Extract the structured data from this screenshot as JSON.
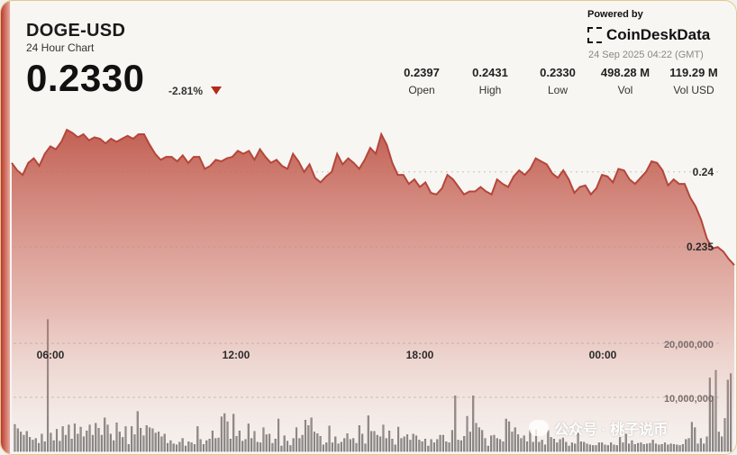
{
  "header": {
    "symbol": "DOGE-USD",
    "subtitle": "24 Hour Chart",
    "price": "0.2330",
    "change": "-2.81%"
  },
  "stats": [
    {
      "value": "0.2397",
      "label": "Open"
    },
    {
      "value": "0.2431",
      "label": "High"
    },
    {
      "value": "0.2330",
      "label": "Low"
    },
    {
      "value": "498.28 M",
      "label": "Vol"
    },
    {
      "value": "119.29 M",
      "label": "Vol USD"
    }
  ],
  "branding": {
    "powered_by": "Powered by",
    "logo_text": "CoinDeskData",
    "timestamp": "24 Sep 2025 04:22 (GMT)"
  },
  "watermark": {
    "text": "公众号 · 桃子说币"
  },
  "colors": {
    "line": "#b5463a",
    "area_top": "#c0584b",
    "area_bottom": "#f2e6e3",
    "volume_bar": "#6e6e6e",
    "volume_bar_recent": "#a05a55",
    "accent_down": "#b32a1c"
  },
  "chart_data": {
    "type": "line",
    "title": "DOGE-USD",
    "subtitle": "24 Hour Chart",
    "x_tick_labels": [
      "06:00",
      "12:00",
      "18:00",
      "00:00"
    ],
    "y_ticks": [
      0.235,
      0.24
    ],
    "y_tick_labels": [
      "0.235",
      "0.24"
    ],
    "ylim": [
      0.2298,
      0.2443
    ],
    "volume_tick_labels": [
      "10,000,000",
      "20,000,000"
    ],
    "volume_ticks": [
      10000000,
      20000000
    ],
    "volume_ylim": [
      0,
      35000000
    ],
    "grid": true,
    "price_series": {
      "name": "DOGE-USD",
      "values": [
        0.2406,
        0.2401,
        0.2398,
        0.2406,
        0.2409,
        0.2404,
        0.2412,
        0.2417,
        0.2415,
        0.242,
        0.2428,
        0.2426,
        0.2423,
        0.2425,
        0.2421,
        0.2423,
        0.2422,
        0.2419,
        0.2422,
        0.242,
        0.2422,
        0.2424,
        0.2422,
        0.2425,
        0.2425,
        0.2418,
        0.2412,
        0.2408,
        0.241,
        0.241,
        0.2407,
        0.2411,
        0.2406,
        0.241,
        0.241,
        0.2402,
        0.2404,
        0.2408,
        0.2407,
        0.2409,
        0.241,
        0.2414,
        0.2412,
        0.2414,
        0.2408,
        0.2415,
        0.241,
        0.2406,
        0.2408,
        0.2404,
        0.2402,
        0.2412,
        0.2407,
        0.24,
        0.2405,
        0.2396,
        0.2393,
        0.2397,
        0.24,
        0.2412,
        0.2405,
        0.2409,
        0.2406,
        0.2402,
        0.2408,
        0.2416,
        0.2412,
        0.2425,
        0.2418,
        0.2406,
        0.2398,
        0.2398,
        0.2392,
        0.2395,
        0.239,
        0.2393,
        0.2386,
        0.2385,
        0.2389,
        0.2398,
        0.2395,
        0.239,
        0.2385,
        0.2387,
        0.2387,
        0.239,
        0.2387,
        0.2385,
        0.2395,
        0.2392,
        0.239,
        0.2397,
        0.2401,
        0.2398,
        0.2402,
        0.2409,
        0.2407,
        0.2405,
        0.2399,
        0.2396,
        0.2401,
        0.2395,
        0.2386,
        0.239,
        0.2391,
        0.2385,
        0.2389,
        0.2398,
        0.2397,
        0.2393,
        0.2402,
        0.2401,
        0.2395,
        0.2392,
        0.2396,
        0.24,
        0.2407,
        0.2406,
        0.2401,
        0.2391,
        0.2395,
        0.2392,
        0.2392,
        0.2383,
        0.2377,
        0.2368,
        0.2356,
        0.2349,
        0.235,
        0.2347,
        0.2342,
        0.2338
      ]
    },
    "volume_series": {
      "name": "Vol",
      "values": [
        5.0,
        4.2,
        3.6,
        3.0,
        3.7,
        2.6,
        2.1,
        2.4,
        1.5,
        3.2,
        1.8,
        24.4,
        3.4,
        2.0,
        4.1,
        1.9,
        4.6,
        3.0,
        4.9,
        2.3,
        5.1,
        3.2,
        4.5,
        2.7,
        3.8,
        4.9,
        3.0,
        5.2,
        4.3,
        3.0,
        6.2,
        4.9,
        3.2,
        2.0,
        5.3,
        3.6,
        2.6,
        4.6,
        1.3,
        4.6,
        3.1,
        7.4,
        4.3,
        2.9,
        4.8,
        4.4,
        4.2,
        3.4,
        3.6,
        2.7,
        3.2,
        1.5,
        2.0,
        1.4,
        1.2,
        1.7,
        2.4,
        1.0,
        1.8,
        1.6,
        1.3,
        4.6,
        2.2,
        1.3,
        2.0,
        2.3,
        3.8,
        2.4,
        2.5,
        6.4,
        7.0,
        5.5,
        2.3,
        6.9,
        2.8,
        3.8,
        1.9,
        2.2,
        5.1,
        2.4,
        3.7,
        1.7,
        1.6,
        4.4,
        3.1,
        3.2,
        1.5,
        2.3,
        6.0,
        1.0,
        2.9,
        1.9,
        1.1,
        2.4,
        4.4,
        2.4,
        3.0,
        5.8,
        4.8,
        6.2,
        3.6,
        3.3,
        2.8,
        1.2,
        1.6,
        4.7,
        1.6,
        2.7,
        1.4,
        1.7,
        2.4,
        3.3,
        2.2,
        2.4,
        1.5,
        4.8,
        3.2,
        1.4,
        6.6,
        3.7,
        3.7,
        3.0,
        2.7,
        4.9,
        2.4,
        3.8,
        2.3,
        1.2,
        4.5,
        2.4,
        2.7,
        3.1,
        2.1,
        3.2,
        2.9,
        2.1,
        1.8,
        2.3,
        1.0,
        2.2,
        1.6,
        2.2,
        3.0,
        3.0,
        1.8,
        1.6,
        3.9,
        10.3,
        2.1,
        2.0,
        2.8,
        6.5,
        3.6,
        10.3,
        5.2,
        4.4,
        3.9,
        2.4,
        1.0,
        2.9,
        3.0,
        2.4,
        2.2,
        1.8,
        6.0,
        5.5,
        3.6,
        4.4,
        3.1,
        2.4,
        2.9,
        1.8,
        4.0,
        1.7,
        4.0,
        1.7,
        2.1,
        1.2,
        3.9,
        2.6,
        2.3,
        1.6,
        2.2,
        2.5,
        1.7,
        1.0,
        1.6,
        1.4,
        3.8,
        1.8,
        1.7,
        1.4,
        1.2,
        1.1,
        1.1,
        1.6,
        1.6,
        1.2,
        1.1,
        1.6,
        1.2,
        1.1,
        2.6,
        1.6,
        3.2,
        1.4,
        2.0,
        1.3,
        1.5,
        1.6,
        1.3,
        1.4,
        1.5,
        2.1,
        1.4,
        1.2,
        1.3,
        1.6,
        1.2,
        1.4,
        1.3,
        1.2,
        1.1,
        1.3,
        2.2,
        2.4,
        5.4,
        4.4,
        1.4,
        2.4,
        1.4,
        2.7,
        13.6,
        10.2,
        15.0,
        3.6,
        2.7,
        6.1,
        13.2,
        14.4
      ]
    },
    "annotations": [
      {
        "label": "0.24"
      },
      {
        "label": "0.235"
      }
    ]
  }
}
